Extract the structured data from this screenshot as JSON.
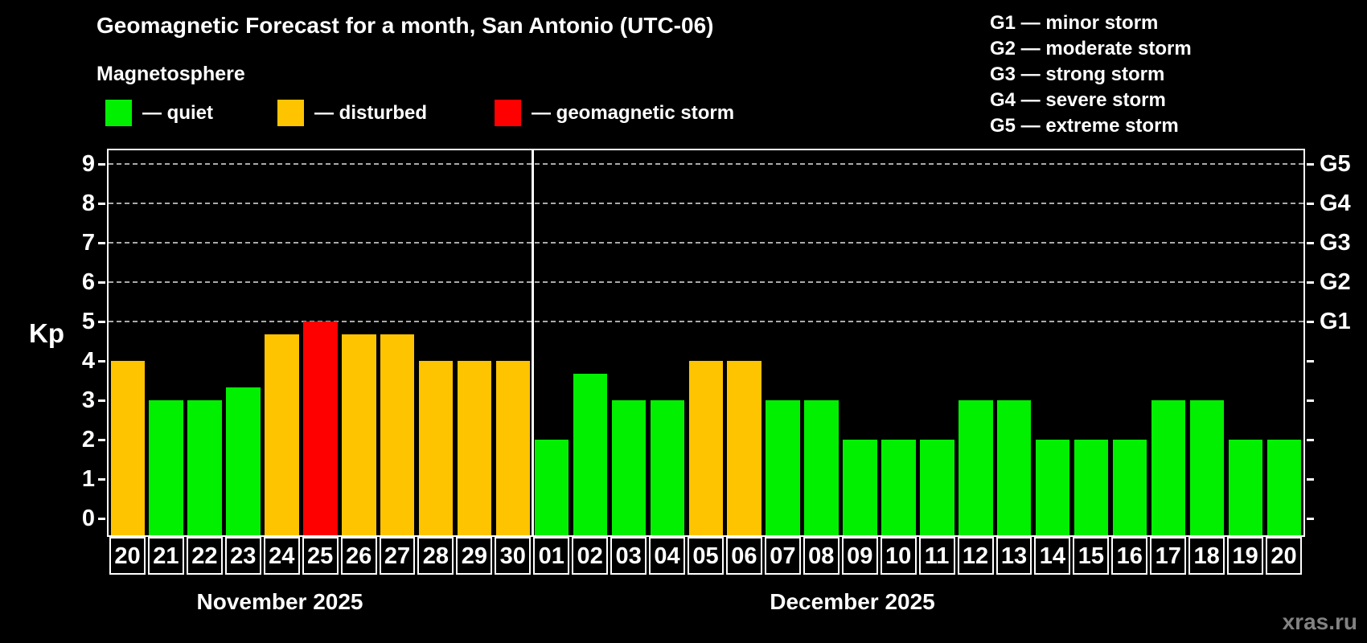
{
  "title": "Geomagnetic Forecast for a month, San Antonio (UTC-06)",
  "subtitle": "Magnetosphere",
  "watermark": "xras.ru",
  "legend": {
    "items": [
      {
        "status": "quiet",
        "label": "— quiet"
      },
      {
        "status": "disturbed",
        "label": "— disturbed"
      },
      {
        "status": "storm",
        "label": "— geomagnetic storm"
      }
    ]
  },
  "g_legend": {
    "lines": [
      "G1 — minor storm",
      "G2 — moderate storm",
      "G3 — strong storm",
      "G4 — severe storm",
      "G5 — extreme storm"
    ]
  },
  "chart_data": {
    "type": "bar",
    "ylabel": "Kp",
    "ylim": [
      0,
      9
    ],
    "yticks": [
      0,
      1,
      2,
      3,
      4,
      5,
      6,
      7,
      8,
      9
    ],
    "grid_levels": [
      5,
      6,
      7,
      8,
      9
    ],
    "grid_style": "dashed",
    "right_axis_labels": [
      {
        "kp": 5,
        "label": "G1"
      },
      {
        "kp": 6,
        "label": "G2"
      },
      {
        "kp": 7,
        "label": "G3"
      },
      {
        "kp": 8,
        "label": "G4"
      },
      {
        "kp": 9,
        "label": "G5"
      }
    ],
    "colors": {
      "quiet": "#00f000",
      "disturbed": "#ffc400",
      "storm": "#ff0000",
      "background": "#000000",
      "axis": "#ffffff",
      "grid": "#aaaaaa"
    },
    "months": [
      {
        "name": "November 2025",
        "days": [
          {
            "date": "20",
            "kp": 4,
            "status": "disturbed"
          },
          {
            "date": "21",
            "kp": 3,
            "status": "quiet"
          },
          {
            "date": "22",
            "kp": 3,
            "status": "quiet"
          },
          {
            "date": "23",
            "kp": 3.33,
            "status": "quiet"
          },
          {
            "date": "24",
            "kp": 4.67,
            "status": "disturbed"
          },
          {
            "date": "25",
            "kp": 5,
            "status": "storm"
          },
          {
            "date": "26",
            "kp": 4.67,
            "status": "disturbed"
          },
          {
            "date": "27",
            "kp": 4.67,
            "status": "disturbed"
          },
          {
            "date": "28",
            "kp": 4,
            "status": "disturbed"
          },
          {
            "date": "29",
            "kp": 4,
            "status": "disturbed"
          },
          {
            "date": "30",
            "kp": 4,
            "status": "disturbed"
          }
        ]
      },
      {
        "name": "December 2025",
        "days": [
          {
            "date": "01",
            "kp": 2,
            "status": "quiet"
          },
          {
            "date": "02",
            "kp": 3.67,
            "status": "quiet"
          },
          {
            "date": "03",
            "kp": 3,
            "status": "quiet"
          },
          {
            "date": "04",
            "kp": 3,
            "status": "quiet"
          },
          {
            "date": "05",
            "kp": 4,
            "status": "disturbed"
          },
          {
            "date": "06",
            "kp": 4,
            "status": "disturbed"
          },
          {
            "date": "07",
            "kp": 3,
            "status": "quiet"
          },
          {
            "date": "08",
            "kp": 3,
            "status": "quiet"
          },
          {
            "date": "09",
            "kp": 2,
            "status": "quiet"
          },
          {
            "date": "10",
            "kp": 2,
            "status": "quiet"
          },
          {
            "date": "11",
            "kp": 2,
            "status": "quiet"
          },
          {
            "date": "12",
            "kp": 3,
            "status": "quiet"
          },
          {
            "date": "13",
            "kp": 3,
            "status": "quiet"
          },
          {
            "date": "14",
            "kp": 2,
            "status": "quiet"
          },
          {
            "date": "15",
            "kp": 2,
            "status": "quiet"
          },
          {
            "date": "16",
            "kp": 2,
            "status": "quiet"
          },
          {
            "date": "17",
            "kp": 3,
            "status": "quiet"
          },
          {
            "date": "18",
            "kp": 3,
            "status": "quiet"
          },
          {
            "date": "19",
            "kp": 2,
            "status": "quiet"
          },
          {
            "date": "20",
            "kp": 2,
            "status": "quiet"
          }
        ]
      }
    ]
  }
}
